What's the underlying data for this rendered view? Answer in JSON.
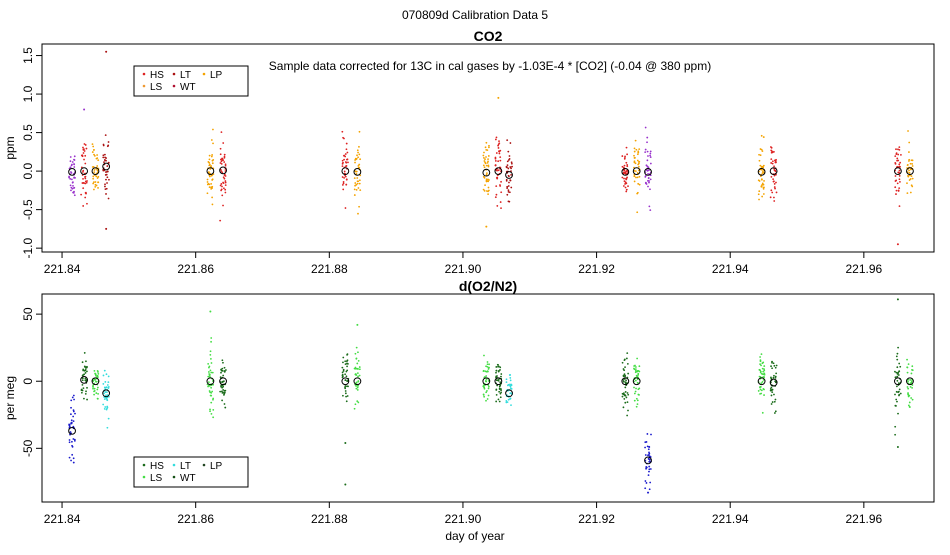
{
  "figure_title": "070809d   Calibration Data 5",
  "shared_xlabel": "day of year",
  "chart_data": [
    {
      "id": "co2",
      "type": "scatter",
      "title": "CO2",
      "ylabel": "ppm",
      "xlim": [
        221.837,
        221.9705
      ],
      "ylim": [
        -1.05,
        1.65
      ],
      "x_ticks": [
        "221.84",
        "221.86",
        "221.88",
        "221.90",
        "221.92",
        "221.94",
        "221.96"
      ],
      "x_tick_values": [
        221.84,
        221.86,
        221.88,
        221.9,
        221.92,
        221.94,
        221.96
      ],
      "y_ticks": [
        "-1.0",
        "-0.5",
        "0.0",
        "0.5",
        "1.0",
        "1.5"
      ],
      "y_tick_values": [
        -1.0,
        -0.5,
        0.0,
        0.5,
        1.0,
        1.5
      ],
      "annotation": "Sample data corrected for 13C in cal gases by -1.03E-4 * [CO2] (-0.04 @ 380 ppm)",
      "legend": {
        "position": "top-left",
        "entries": [
          {
            "label": "HS",
            "color": "#dd2222"
          },
          {
            "label": "LT",
            "color": "#aa1111"
          },
          {
            "label": "LP",
            "color": "#f4a300"
          },
          {
            "label": "LS",
            "color": "#ee9933"
          },
          {
            "label": "WT",
            "color": "#b01030"
          }
        ]
      },
      "series": [
        {
          "name": "grp1-a",
          "color": "#9933cc",
          "x": 221.8415,
          "mean": -0.02,
          "spread": 0.22,
          "n": 40
        },
        {
          "name": "grp1-b",
          "color": "#dd2222",
          "x": 221.8433,
          "mean": 0.0,
          "spread": 0.25,
          "n": 40
        },
        {
          "name": "grp1-c",
          "color": "#f4a300",
          "x": 221.845,
          "mean": 0.0,
          "spread": 0.22,
          "n": 40
        },
        {
          "name": "grp1-d",
          "color": "#aa1111",
          "x": 221.8466,
          "mean": 0.06,
          "spread": 0.25,
          "n": 40
        },
        {
          "name": "grp2-a",
          "color": "#f4a300",
          "x": 221.8622,
          "mean": 0.0,
          "spread": 0.25,
          "n": 45
        },
        {
          "name": "grp2-b",
          "color": "#dd2222",
          "x": 221.8641,
          "mean": 0.01,
          "spread": 0.25,
          "n": 45
        },
        {
          "name": "grp3-a",
          "color": "#dd2222",
          "x": 221.8824,
          "mean": 0.0,
          "spread": 0.25,
          "n": 40
        },
        {
          "name": "grp3-b",
          "color": "#f4a300",
          "x": 221.8842,
          "mean": -0.01,
          "spread": 0.25,
          "n": 40
        },
        {
          "name": "grp4-a",
          "color": "#f4a300",
          "x": 221.9035,
          "mean": -0.02,
          "spread": 0.3,
          "n": 45
        },
        {
          "name": "grp4-b",
          "color": "#dd2222",
          "x": 221.9053,
          "mean": 0.0,
          "spread": 0.25,
          "n": 45
        },
        {
          "name": "grp4-c",
          "color": "#aa1111",
          "x": 221.9069,
          "mean": -0.05,
          "spread": 0.25,
          "n": 40
        },
        {
          "name": "grp5-a",
          "color": "#dd2222",
          "x": 221.9243,
          "mean": -0.01,
          "spread": 0.22,
          "n": 45
        },
        {
          "name": "grp5-b",
          "color": "#f4a300",
          "x": 221.926,
          "mean": 0.0,
          "spread": 0.25,
          "n": 40
        },
        {
          "name": "grp5-c",
          "color": "#9933cc",
          "x": 221.9277,
          "mean": -0.01,
          "spread": 0.25,
          "n": 40
        },
        {
          "name": "grp6-a",
          "color": "#f4a300",
          "x": 221.9447,
          "mean": -0.01,
          "spread": 0.25,
          "n": 45
        },
        {
          "name": "grp6-b",
          "color": "#dd2222",
          "x": 221.9465,
          "mean": 0.0,
          "spread": 0.25,
          "n": 40
        },
        {
          "name": "grp7-a",
          "color": "#dd2222",
          "x": 221.9651,
          "mean": 0.0,
          "spread": 0.25,
          "n": 40
        },
        {
          "name": "grp7-b",
          "color": "#f4a300",
          "x": 221.9669,
          "mean": 0.0,
          "spread": 0.22,
          "n": 35
        }
      ],
      "outliers": [
        {
          "x": 221.8466,
          "y": 1.55,
          "color": "#aa1111"
        },
        {
          "x": 221.8433,
          "y": 0.8,
          "color": "#9933cc"
        },
        {
          "x": 221.9053,
          "y": 0.95,
          "color": "#f4a300"
        },
        {
          "x": 221.9651,
          "y": -0.95,
          "color": "#dd2222"
        },
        {
          "x": 221.8466,
          "y": -0.75,
          "color": "#aa1111"
        },
        {
          "x": 221.9035,
          "y": -0.72,
          "color": "#f4a300"
        }
      ],
      "means": [
        {
          "x": 221.8415,
          "y": -0.01
        },
        {
          "x": 221.8433,
          "y": 0.0
        },
        {
          "x": 221.845,
          "y": 0.0
        },
        {
          "x": 221.8466,
          "y": 0.06
        },
        {
          "x": 221.8622,
          "y": 0.0
        },
        {
          "x": 221.8641,
          "y": 0.01
        },
        {
          "x": 221.8824,
          "y": 0.0
        },
        {
          "x": 221.8842,
          "y": -0.01
        },
        {
          "x": 221.9035,
          "y": -0.02
        },
        {
          "x": 221.9053,
          "y": 0.0
        },
        {
          "x": 221.9069,
          "y": -0.05
        },
        {
          "x": 221.9243,
          "y": -0.01
        },
        {
          "x": 221.926,
          "y": 0.0
        },
        {
          "x": 221.9277,
          "y": -0.01
        },
        {
          "x": 221.9447,
          "y": -0.01
        },
        {
          "x": 221.9465,
          "y": 0.0
        },
        {
          "x": 221.9651,
          "y": 0.0
        },
        {
          "x": 221.9669,
          "y": 0.0
        }
      ]
    },
    {
      "id": "o2n2",
      "type": "scatter",
      "title": "d(O2/N2)",
      "ylabel": "per meg",
      "xlim": [
        221.837,
        221.9705
      ],
      "ylim": [
        -90,
        65
      ],
      "x_ticks": [
        "221.84",
        "221.86",
        "221.88",
        "221.90",
        "221.92",
        "221.94",
        "221.96"
      ],
      "x_tick_values": [
        221.84,
        221.86,
        221.88,
        221.9,
        221.92,
        221.94,
        221.96
      ],
      "y_ticks": [
        "-50",
        "0",
        "50"
      ],
      "y_tick_values": [
        -50,
        0,
        50
      ],
      "legend": {
        "position": "bottom-left",
        "entries": [
          {
            "label": "HS",
            "color": "#1a6b1a"
          },
          {
            "label": "LT",
            "color": "#33dddd"
          },
          {
            "label": "LP",
            "color": "#224422"
          },
          {
            "label": "LS",
            "color": "#44dd44"
          },
          {
            "label": "WT",
            "color": "#155015"
          }
        ]
      },
      "series": [
        {
          "name": "grp1-a",
          "color": "#1a1acc",
          "x": 221.8415,
          "mean": -37,
          "spread": 15,
          "n": 40
        },
        {
          "name": "grp1-b",
          "color": "#1a6b1a",
          "x": 221.8433,
          "mean": 2,
          "spread": 10,
          "n": 40
        },
        {
          "name": "grp1-c",
          "color": "#44dd44",
          "x": 221.845,
          "mean": 0,
          "spread": 10,
          "n": 40
        },
        {
          "name": "grp1-d",
          "color": "#33dddd",
          "x": 221.8466,
          "mean": -9,
          "spread": 12,
          "n": 40
        },
        {
          "name": "grp2-a",
          "color": "#44dd44",
          "x": 221.8622,
          "mean": 0,
          "spread": 18,
          "n": 45
        },
        {
          "name": "grp2-b",
          "color": "#1a6b1a",
          "x": 221.8641,
          "mean": 0,
          "spread": 10,
          "n": 45
        },
        {
          "name": "grp3-a",
          "color": "#1a6b1a",
          "x": 221.8824,
          "mean": 0,
          "spread": 15,
          "n": 40
        },
        {
          "name": "grp3-b",
          "color": "#44dd44",
          "x": 221.8842,
          "mean": 0,
          "spread": 15,
          "n": 40
        },
        {
          "name": "grp4-a",
          "color": "#44dd44",
          "x": 221.9035,
          "mean": 0,
          "spread": 12,
          "n": 45
        },
        {
          "name": "grp4-b",
          "color": "#1a6b1a",
          "x": 221.9053,
          "mean": 0,
          "spread": 10,
          "n": 45
        },
        {
          "name": "grp4-c",
          "color": "#33dddd",
          "x": 221.9069,
          "mean": -9,
          "spread": 8,
          "n": 35
        },
        {
          "name": "grp5-a",
          "color": "#1a6b1a",
          "x": 221.9243,
          "mean": 0,
          "spread": 13,
          "n": 45
        },
        {
          "name": "grp5-b",
          "color": "#44dd44",
          "x": 221.926,
          "mean": 0,
          "spread": 12,
          "n": 40
        },
        {
          "name": "grp5-c",
          "color": "#1a1acc",
          "x": 221.9277,
          "mean": -59,
          "spread": 12,
          "n": 40
        },
        {
          "name": "grp6-a",
          "color": "#44dd44",
          "x": 221.9447,
          "mean": 0,
          "spread": 12,
          "n": 45
        },
        {
          "name": "grp6-b",
          "color": "#1a6b1a",
          "x": 221.9465,
          "mean": -2,
          "spread": 13,
          "n": 40
        },
        {
          "name": "grp7-a",
          "color": "#1a6b1a",
          "x": 221.9651,
          "mean": 0,
          "spread": 16,
          "n": 40
        },
        {
          "name": "grp7-b",
          "color": "#44dd44",
          "x": 221.9669,
          "mean": 0,
          "spread": 12,
          "n": 35
        }
      ],
      "outliers": [
        {
          "x": 221.8622,
          "y": 52,
          "color": "#44dd44"
        },
        {
          "x": 221.8622,
          "y": -58,
          "color": "#44dd44"
        },
        {
          "x": 221.8824,
          "y": -77,
          "color": "#1a6b1a"
        },
        {
          "x": 221.8824,
          "y": -46,
          "color": "#1a6b1a"
        },
        {
          "x": 221.9651,
          "y": 61,
          "color": "#1a6b1a"
        },
        {
          "x": 221.9651,
          "y": -49,
          "color": "#1a6b1a"
        },
        {
          "x": 221.9277,
          "y": -83,
          "color": "#1a1acc"
        },
        {
          "x": 221.8842,
          "y": 42,
          "color": "#44dd44"
        }
      ],
      "means": [
        {
          "x": 221.8415,
          "y": -37
        },
        {
          "x": 221.8433,
          "y": 1
        },
        {
          "x": 221.845,
          "y": 0
        },
        {
          "x": 221.8466,
          "y": -9
        },
        {
          "x": 221.8622,
          "y": 0
        },
        {
          "x": 221.8641,
          "y": 0
        },
        {
          "x": 221.8824,
          "y": 0
        },
        {
          "x": 221.8842,
          "y": 0
        },
        {
          "x": 221.9035,
          "y": 0
        },
        {
          "x": 221.9053,
          "y": 0
        },
        {
          "x": 221.9069,
          "y": -9
        },
        {
          "x": 221.9243,
          "y": 0
        },
        {
          "x": 221.926,
          "y": 0
        },
        {
          "x": 221.9277,
          "y": -59
        },
        {
          "x": 221.9447,
          "y": 0
        },
        {
          "x": 221.9465,
          "y": -1
        },
        {
          "x": 221.9651,
          "y": 0
        },
        {
          "x": 221.9669,
          "y": 0
        }
      ]
    }
  ]
}
